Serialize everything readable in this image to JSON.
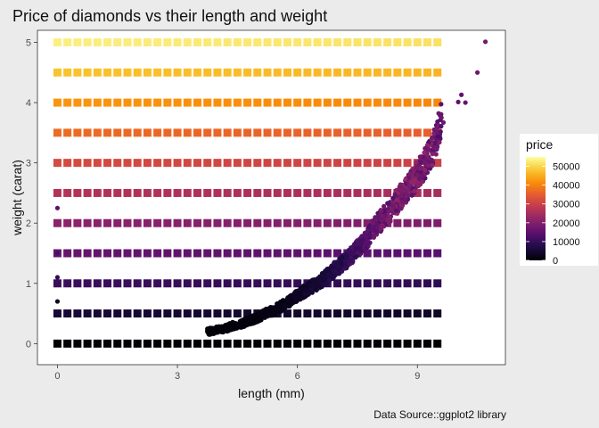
{
  "chart_data": {
    "type": "scatter",
    "title": "Price of diamonds vs their length and weight",
    "xlabel": "length (mm)",
    "ylabel": "weight (carat)",
    "caption": "Data Source::ggplot2 library",
    "xlim": [
      -0.5,
      11.2
    ],
    "ylim": [
      -0.35,
      5.2
    ],
    "x_ticks": [
      0,
      3,
      6,
      9
    ],
    "y_ticks": [
      0,
      1,
      2,
      3,
      4,
      5
    ],
    "legend": {
      "title": "price",
      "position": "right",
      "breaks": [
        50000,
        40000,
        30000,
        20000,
        10000,
        0
      ],
      "range": [
        0,
        55000
      ],
      "palette": "inferno"
    },
    "grid": {
      "description": "Square markers on a regular grid: length 0 to 9.7 mm, weight 0 to 5 carat; color encodes price",
      "x_range": [
        0,
        9.7
      ],
      "x_step": 0.25,
      "y_range": [
        0,
        5
      ],
      "y_step": 0.5
    },
    "observed": {
      "description": "Actual diamonds as round points, price colored",
      "points": [
        [
          3.75,
          0.2,
          400
        ],
        [
          3.9,
          0.21,
          450
        ],
        [
          4.0,
          0.23,
          500
        ],
        [
          4.2,
          0.25,
          600
        ],
        [
          4.4,
          0.3,
          700
        ],
        [
          4.6,
          0.33,
          800
        ],
        [
          4.8,
          0.38,
          900
        ],
        [
          5.0,
          0.43,
          1100
        ],
        [
          5.2,
          0.5,
          1400
        ],
        [
          5.4,
          0.55,
          1700
        ],
        [
          5.6,
          0.62,
          2000
        ],
        [
          5.8,
          0.7,
          2600
        ],
        [
          6.0,
          0.8,
          3200
        ],
        [
          6.2,
          0.88,
          4000
        ],
        [
          6.4,
          0.96,
          4800
        ],
        [
          6.6,
          1.05,
          5600
        ],
        [
          6.8,
          1.15,
          6800
        ],
        [
          7.0,
          1.27,
          8000
        ],
        [
          7.2,
          1.37,
          9000
        ],
        [
          7.4,
          1.5,
          10500
        ],
        [
          7.6,
          1.65,
          12000
        ],
        [
          7.8,
          1.8,
          13500
        ],
        [
          8.0,
          1.98,
          15000
        ],
        [
          8.2,
          2.12,
          16500
        ],
        [
          8.4,
          2.28,
          17500
        ],
        [
          8.6,
          2.45,
          18000
        ],
        [
          8.8,
          2.62,
          18500
        ],
        [
          9.0,
          2.8,
          18000
        ],
        [
          9.2,
          3.0,
          17500
        ],
        [
          9.4,
          3.25,
          17000
        ],
        [
          9.5,
          3.5,
          16500
        ],
        [
          9.6,
          3.75,
          17000
        ],
        [
          0.0,
          2.25,
          15000
        ],
        [
          0.0,
          1.5,
          12000
        ],
        [
          0.0,
          1.1,
          9000
        ],
        [
          0.0,
          0.7,
          3000
        ],
        [
          10.1,
          4.13,
          15000
        ],
        [
          10.2,
          4.0,
          16000
        ],
        [
          10.5,
          4.5,
          17000
        ],
        [
          10.7,
          5.01,
          18000
        ],
        [
          10.02,
          4.01,
          15500
        ],
        [
          9.65,
          3.67,
          17000
        ]
      ]
    }
  }
}
